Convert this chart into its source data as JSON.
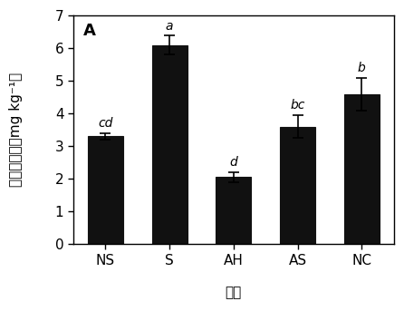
{
  "categories": [
    "NS",
    "S",
    "AH",
    "AS",
    "NC"
  ],
  "values": [
    3.3,
    6.1,
    2.05,
    3.6,
    4.6
  ],
  "errors": [
    0.1,
    0.28,
    0.15,
    0.35,
    0.5
  ],
  "sig_labels": [
    "cd",
    "a",
    "d",
    "bc",
    "b"
  ],
  "bar_color": "#111111",
  "edge_color": "#111111",
  "ylabel_chinese": "植物镌含量（",
  "ylabel_english": "mg kg⁻¹",
  "ylabel_close": "）",
  "xlabel": "处理",
  "panel_label": "A",
  "ylim": [
    0,
    7
  ],
  "yticks": [
    0,
    1,
    2,
    3,
    4,
    5,
    6,
    7
  ],
  "label_fontsize": 11,
  "tick_fontsize": 11,
  "sig_fontsize": 10,
  "bar_width": 0.55
}
